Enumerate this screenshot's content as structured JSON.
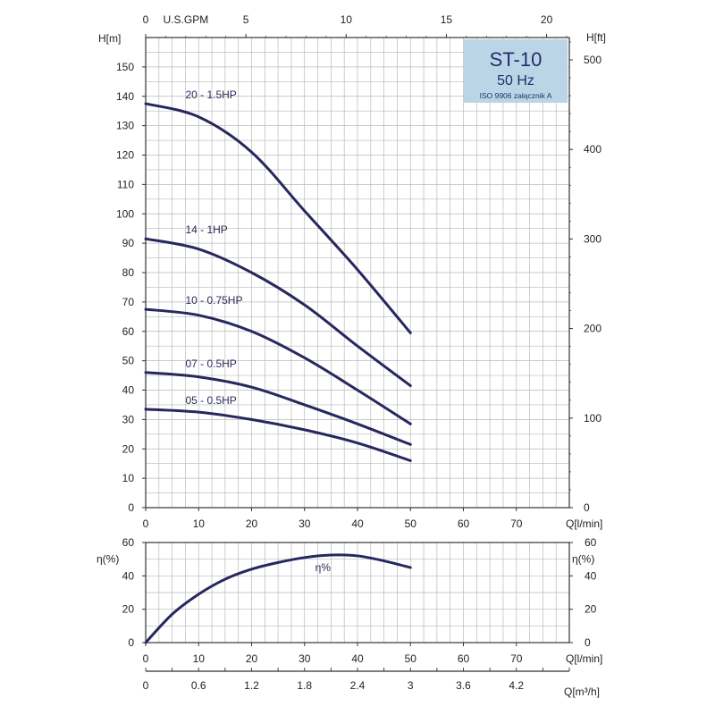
{
  "chart_data": [
    {
      "type": "line",
      "title": "ST-10",
      "subtitle": "50 Hz",
      "note": "ISO 9906 załącznik A",
      "xlabel": "Q[l/min]",
      "ylabel": "H[m]",
      "ylabel_right": "H[ft]",
      "xlabel_top": "U.S.GPM",
      "xlim": [
        0,
        80
      ],
      "ylim": [
        0,
        160
      ],
      "grid": true,
      "x_ticks": [
        0,
        10,
        20,
        30,
        40,
        50,
        60,
        70
      ],
      "y_ticks": [
        0,
        10,
        20,
        30,
        40,
        50,
        60,
        70,
        80,
        90,
        100,
        110,
        120,
        130,
        140,
        150
      ],
      "y_right_ticks": [
        0,
        100,
        200,
        300,
        400,
        500
      ],
      "top_ticks": [
        0,
        5,
        10,
        15,
        20
      ],
      "series": [
        {
          "name": "20 - 1.5HP",
          "x": [
            0,
            10,
            20,
            30,
            40,
            50
          ],
          "y": [
            137.5,
            133,
            121,
            101,
            81,
            59.5
          ]
        },
        {
          "name": "14 - 1HP",
          "x": [
            0,
            10,
            20,
            30,
            40,
            50
          ],
          "y": [
            91.5,
            88,
            80,
            69,
            55,
            41.5
          ]
        },
        {
          "name": "10 - 0.75HP",
          "x": [
            0,
            10,
            20,
            30,
            40,
            50
          ],
          "y": [
            67.5,
            65.5,
            60,
            51,
            40,
            28.5
          ]
        },
        {
          "name": "07 - 0.5HP",
          "x": [
            0,
            10,
            20,
            30,
            40,
            50
          ],
          "y": [
            46,
            44.5,
            41,
            35,
            28.5,
            21.5
          ]
        },
        {
          "name": "05 - 0.5HP",
          "x": [
            0,
            10,
            20,
            30,
            40,
            50
          ],
          "y": [
            33.5,
            32.5,
            30,
            26.5,
            22,
            16
          ]
        }
      ]
    },
    {
      "type": "line",
      "xlabel": "Q[l/min]",
      "ylabel": "η(%)",
      "ylabel_right": "η(%)",
      "xlim": [
        0,
        80
      ],
      "ylim": [
        0,
        60
      ],
      "grid": true,
      "x_ticks": [
        0,
        10,
        20,
        30,
        40,
        50,
        60,
        70
      ],
      "y_ticks": [
        0,
        20,
        40,
        60
      ],
      "series": [
        {
          "name": "η%",
          "x": [
            0,
            5,
            10,
            15,
            20,
            25,
            30,
            35,
            40,
            45,
            50
          ],
          "y": [
            0,
            17,
            29,
            38,
            44,
            48,
            51,
            52.5,
            52,
            49,
            45
          ]
        }
      ]
    }
  ],
  "q_m3h_axis": {
    "label": "Q[m³/h]",
    "ticks": [
      "0",
      "0.6",
      "1.2",
      "1.8",
      "2.4",
      "3",
      "3.6",
      "4.2"
    ]
  },
  "colors": {
    "curve": "#26285e",
    "grid": "#b9b9b9",
    "box": "#bcd5e6"
  }
}
